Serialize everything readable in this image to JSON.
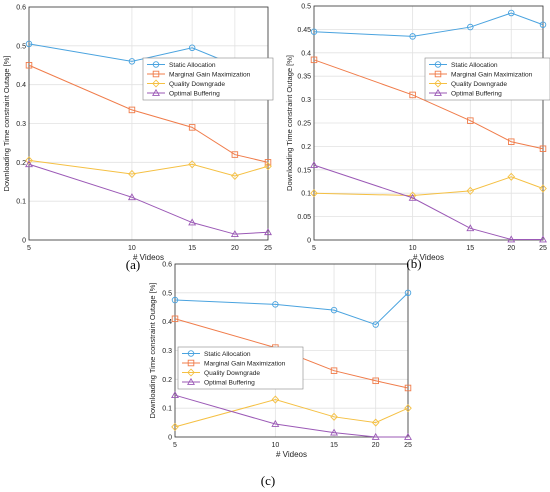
{
  "captions": [
    "(a)",
    "(b)",
    "(c)"
  ],
  "colors": {
    "Static Allocation": "#4aa3df",
    "Marginal Gain Maximization": "#f07c4a",
    "Quality Downgrade": "#f5c043",
    "Optimal Buffering": "#9b59b6"
  },
  "chart_data": [
    {
      "type": "line",
      "xlabel": "# Videos",
      "ylabel": "Downloading Time constraint Outage [%]",
      "x": [
        5,
        10,
        15,
        20,
        25
      ],
      "xticks": [
        "5",
        "10",
        "15",
        "20",
        "25"
      ],
      "xscale": "log",
      "ylim": [
        0,
        0.6
      ],
      "yticks": [
        "0",
        "0.1",
        "0.2",
        "0.3",
        "0.4",
        "0.5",
        "0.6"
      ],
      "grid": true,
      "legend": "center-right",
      "series": [
        {
          "name": "Static Allocation",
          "marker": "circle",
          "values": [
            0.505,
            0.46,
            0.495,
            0.45,
            0.45
          ]
        },
        {
          "name": "Marginal Gain Maximization",
          "marker": "square",
          "values": [
            0.45,
            0.335,
            0.29,
            0.22,
            0.2
          ]
        },
        {
          "name": "Quality Downgrade",
          "marker": "diamond",
          "values": [
            0.205,
            0.17,
            0.195,
            0.165,
            0.19
          ]
        },
        {
          "name": "Optimal Buffering",
          "marker": "triangle",
          "values": [
            0.195,
            0.11,
            0.045,
            0.015,
            0.02
          ]
        }
      ]
    },
    {
      "type": "line",
      "xlabel": "# Videos",
      "ylabel": "Downloading Time constraint Outage [%]",
      "x": [
        5,
        10,
        15,
        20,
        25
      ],
      "xticks": [
        "5",
        "10",
        "15",
        "20",
        "25"
      ],
      "xscale": "log",
      "ylim": [
        0,
        0.5
      ],
      "yticks": [
        "0",
        "0.05",
        "0.1",
        "0.15",
        "0.2",
        "0.25",
        "0.3",
        "0.35",
        "0.4",
        "0.45",
        "0.5"
      ],
      "grid": true,
      "legend": "top-right",
      "series": [
        {
          "name": "Static Allocation",
          "marker": "circle",
          "values": [
            0.445,
            0.435,
            0.455,
            0.485,
            0.46
          ]
        },
        {
          "name": "Marginal Gain Maximization",
          "marker": "square",
          "values": [
            0.385,
            0.31,
            0.255,
            0.21,
            0.195
          ]
        },
        {
          "name": "Quality Downgrade",
          "marker": "diamond",
          "values": [
            0.1,
            0.095,
            0.105,
            0.135,
            0.11
          ]
        },
        {
          "name": "Optimal Buffering",
          "marker": "triangle",
          "values": [
            0.16,
            0.09,
            0.025,
            0.001,
            0.001
          ]
        }
      ]
    },
    {
      "type": "line",
      "xlabel": "# Videos",
      "ylabel": "Downloading Time constraint Outage [%]",
      "x": [
        5,
        10,
        15,
        20,
        25
      ],
      "xticks": [
        "5",
        "10",
        "15",
        "20",
        "25"
      ],
      "xscale": "log",
      "ylim": [
        0,
        0.6
      ],
      "yticks": [
        "0",
        "0.1",
        "0.2",
        "0.3",
        "0.4",
        "0.5",
        "0.6"
      ],
      "grid": true,
      "legend": "center-left",
      "series": [
        {
          "name": "Static Allocation",
          "marker": "circle",
          "values": [
            0.475,
            0.46,
            0.44,
            0.39,
            0.5
          ]
        },
        {
          "name": "Marginal Gain Maximization",
          "marker": "square",
          "values": [
            0.41,
            0.31,
            0.23,
            0.195,
            0.17
          ]
        },
        {
          "name": "Quality Downgrade",
          "marker": "diamond",
          "values": [
            0.035,
            0.13,
            0.07,
            0.05,
            0.1
          ]
        },
        {
          "name": "Optimal Buffering",
          "marker": "triangle",
          "values": [
            0.145,
            0.045,
            0.015,
            0.0,
            0.0
          ]
        }
      ]
    }
  ]
}
